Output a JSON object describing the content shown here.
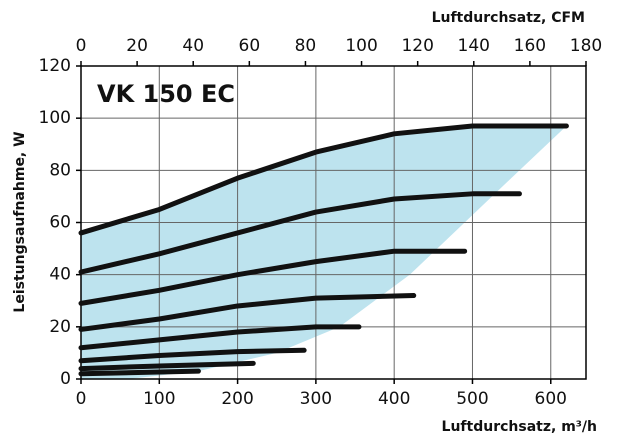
{
  "chart_data": {
    "type": "line",
    "title": "VK 150 EC",
    "xlabel": "Luftdurchsatz, m³/h",
    "x2label": "Luftdurchsatz, CFM",
    "ylabel": "Leistungsaufnahme, W",
    "xlim": [
      0,
      645
    ],
    "xticks": [
      0,
      100,
      200,
      300,
      400,
      500,
      600
    ],
    "x2lim": [
      0,
      180
    ],
    "x2ticks": [
      0,
      20,
      40,
      60,
      80,
      100,
      120,
      140,
      160,
      180
    ],
    "ylim": [
      0,
      120
    ],
    "yticks": [
      0,
      20,
      40,
      60,
      80,
      100,
      120
    ],
    "grid": true,
    "envelope": {
      "color": "#bde3ee",
      "x": [
        0,
        100,
        200,
        300,
        400,
        500,
        620,
        560,
        490,
        420,
        330,
        250,
        150,
        60,
        0
      ],
      "values": [
        56,
        65,
        77,
        87,
        94,
        97,
        97,
        80,
        60,
        40,
        20,
        10,
        3,
        0,
        0
      ]
    },
    "series": [
      {
        "color": "#111111",
        "x": [
          0,
          100,
          200,
          300,
          400,
          500,
          620
        ],
        "values": [
          56,
          65,
          77,
          87,
          94,
          97,
          97
        ]
      },
      {
        "color": "#111111",
        "x": [
          0,
          100,
          200,
          300,
          400,
          500,
          560
        ],
        "values": [
          41,
          48,
          56,
          64,
          69,
          71,
          71
        ]
      },
      {
        "color": "#111111",
        "x": [
          0,
          100,
          200,
          300,
          400,
          490
        ],
        "values": [
          29,
          34,
          40,
          45,
          49,
          49
        ]
      },
      {
        "color": "#111111",
        "x": [
          0,
          100,
          200,
          300,
          425
        ],
        "values": [
          19,
          23,
          28,
          31,
          32
        ]
      },
      {
        "color": "#111111",
        "x": [
          0,
          100,
          200,
          300,
          355
        ],
        "values": [
          12,
          15,
          18,
          20,
          20
        ]
      },
      {
        "color": "#111111",
        "x": [
          0,
          100,
          200,
          285
        ],
        "values": [
          7,
          9,
          10.5,
          11
        ]
      },
      {
        "color": "#111111",
        "x": [
          0,
          100,
          220
        ],
        "values": [
          4,
          5,
          6
        ]
      },
      {
        "color": "#111111",
        "x": [
          0,
          150
        ],
        "values": [
          2,
          3
        ]
      }
    ]
  }
}
